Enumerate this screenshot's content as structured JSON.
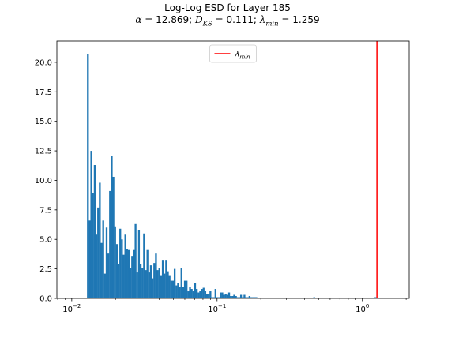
{
  "chart_data": {
    "type": "bar",
    "title": "Log-Log ESD for Layer 185",
    "subtitle": {
      "alpha_value": "12.869",
      "dks_value": "0.111",
      "lambda_min_value": "1.259"
    },
    "xscale": "log",
    "xlim": [
      0.0079,
      2.1
    ],
    "ylim": [
      0,
      21.8
    ],
    "x_tick_labels": [
      "10^-2",
      "10^-1",
      "10^0"
    ],
    "y_tick_values": [
      0.0,
      2.5,
      5.0,
      7.5,
      10.0,
      12.5,
      15.0,
      17.5,
      20.0
    ],
    "y_tick_labels": [
      "0.0",
      "2.5",
      "5.0",
      "7.5",
      "10.0",
      "12.5",
      "15.0",
      "17.5",
      "20.0"
    ],
    "bar_color": "#1f77b4",
    "vline": {
      "x": 1.259,
      "color": "#ff0000",
      "legend_label": "λmin"
    },
    "legend_position": "top-center",
    "bins": {
      "log10_start": -1.895,
      "log10_end": 0.107,
      "heights": [
        20.7,
        6.6,
        12.5,
        8.9,
        11.3,
        5.4,
        7.7,
        9.8,
        4.7,
        6.6,
        2.1,
        6.0,
        3.8,
        9.1,
        12.1,
        10.3,
        6.1,
        4.6,
        2.9,
        5.9,
        5.0,
        3.7,
        5.4,
        4.2,
        4.1,
        2.6,
        3.6,
        4.1,
        6.3,
        2.2,
        5.8,
        2.9,
        2.6,
        5.5,
        2.4,
        4.1,
        2.2,
        2.8,
        1.7,
        3.0,
        3.8,
        2.4,
        2.6,
        1.9,
        3.2,
        2.1,
        3.2,
        2.3,
        1.9,
        1.5,
        1.5,
        2.5,
        1.1,
        1.3,
        1.0,
        2.6,
        1.0,
        1.5,
        1.5,
        0.6,
        1.0,
        0.8,
        0.6,
        1.3,
        0.8,
        0.5,
        0.6,
        0.8,
        0.9,
        0.6,
        0.4,
        0.4,
        0.6,
        0.1,
        0.1,
        0.8,
        0.1,
        0.1,
        0.5,
        0.5,
        0.3,
        0.4,
        0.3,
        0.5,
        0.2,
        0.2,
        0.3,
        0.2,
        0.1,
        0.1,
        0.3,
        0.1,
        0.3,
        0.1,
        0.1,
        0.2,
        0.1,
        0.1,
        0.1,
        0.1,
        0.05,
        0.05,
        0.05,
        0.05,
        0.05,
        0.05,
        0.05,
        0.05,
        0.05,
        0.05,
        0.05,
        0.05,
        0.05,
        0.05,
        0.05,
        0.05,
        0.05,
        0.05,
        0.05,
        0.05,
        0.05,
        0.05,
        0.05,
        0.05,
        0.05,
        0.05,
        0.05,
        0.05,
        0.05,
        0.05,
        0.05,
        0.05,
        0.05,
        0.1,
        0.05,
        0.05,
        0.05,
        0.05,
        0.05,
        0.05,
        0.05,
        0.05,
        0.05,
        0.05,
        0.05,
        0.05,
        0.05,
        0.05,
        0.05,
        0.05,
        0.05,
        0.05,
        0.05,
        0.05,
        0.05,
        0.05,
        0.05,
        0.05,
        0.05,
        0.05,
        0.05,
        0.05,
        0.05,
        0.05,
        0.05,
        0.05,
        0.05,
        0.05,
        0.05,
        0.1,
        0.05
      ]
    }
  }
}
